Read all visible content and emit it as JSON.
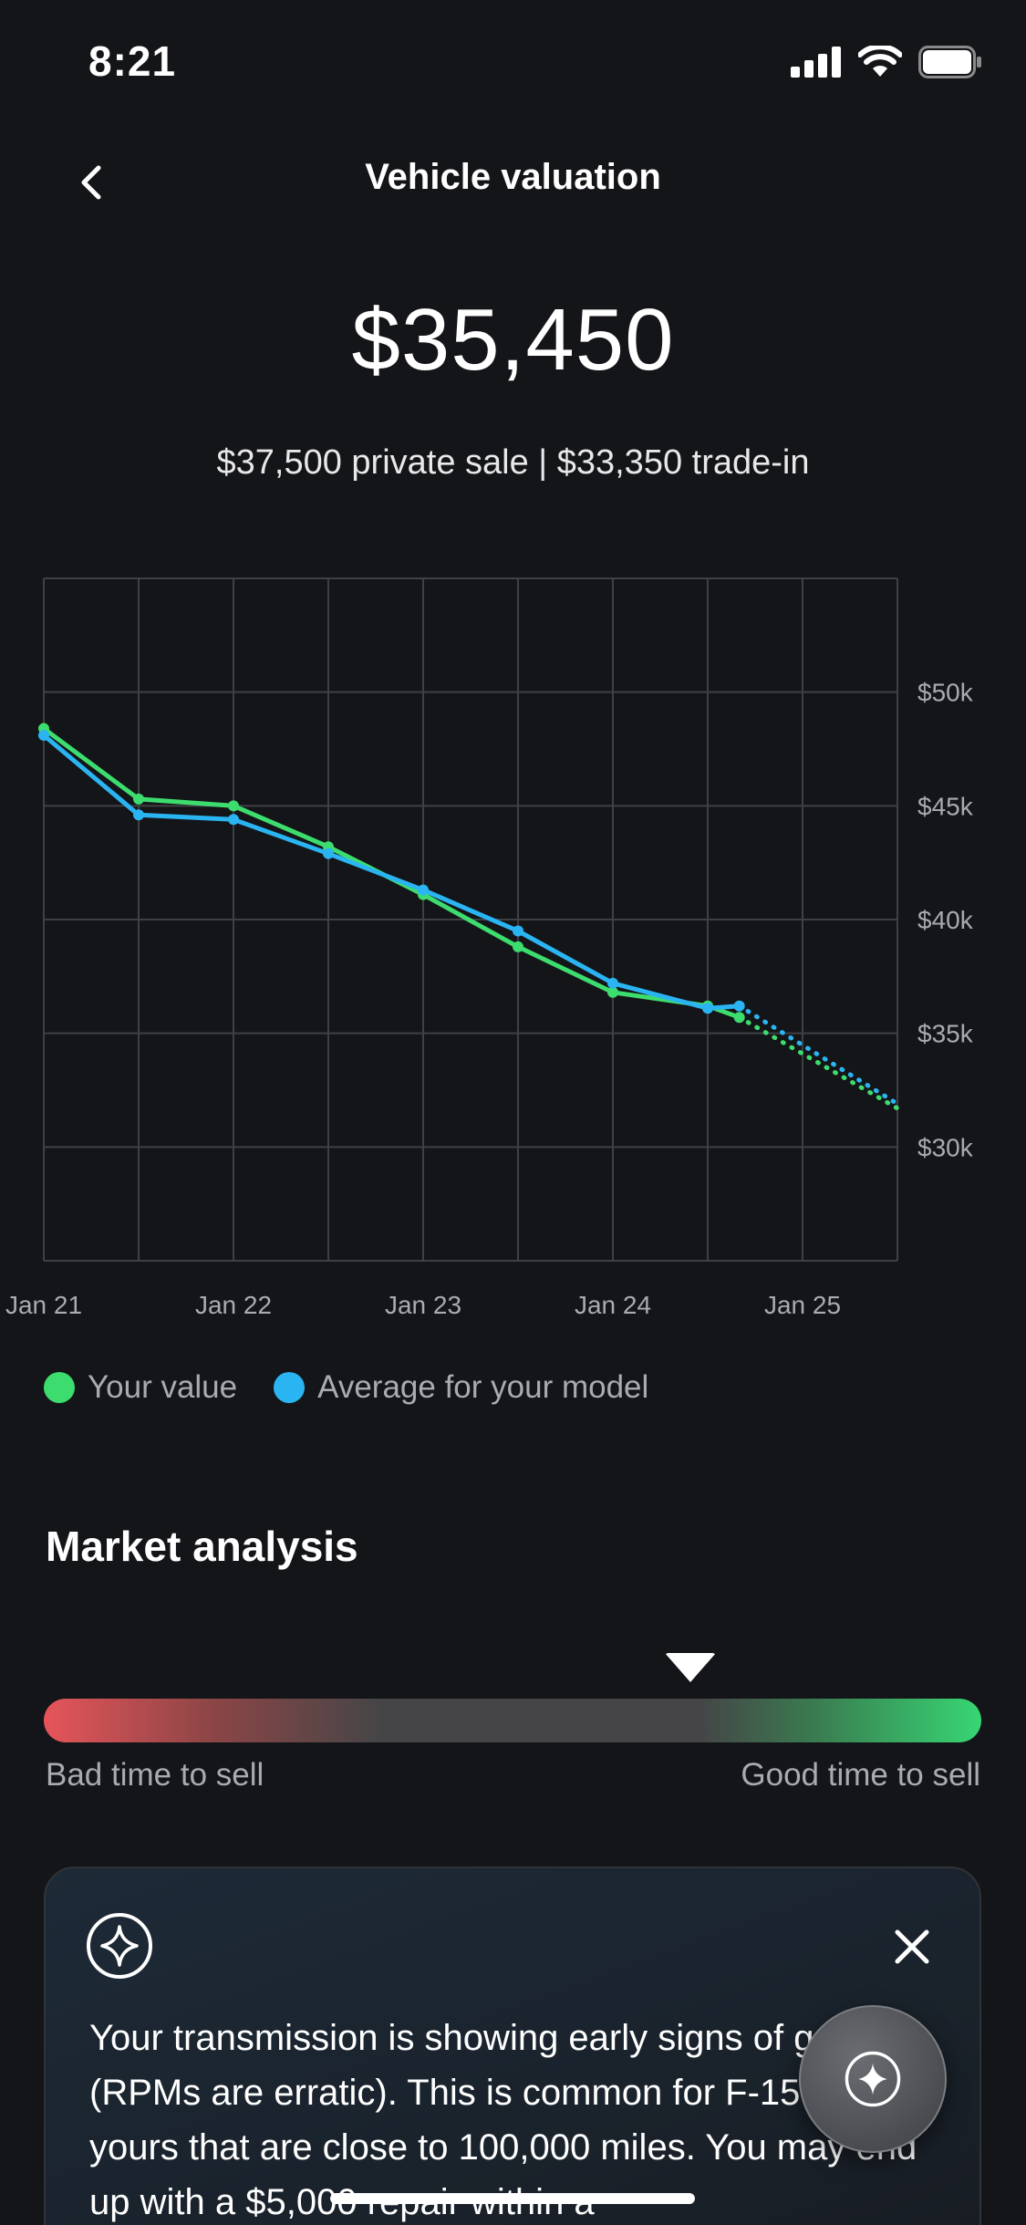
{
  "status_bar": {
    "time": "8:21"
  },
  "header": {
    "title": "Vehicle valuation"
  },
  "valuation": {
    "amount": "$35,450",
    "subtitle": "$37,500 private sale | $33,350 trade-in"
  },
  "chart_data": {
    "type": "line",
    "x_ticks": [
      "Jan 21",
      "Jan 22",
      "Jan 23",
      "Jan 24",
      "Jan 25"
    ],
    "y_ticks": [
      "$50k",
      "$45k",
      "$40k",
      "$35k",
      "$30k"
    ],
    "y_tick_values": [
      50000,
      45000,
      40000,
      35000,
      30000
    ],
    "ylim": [
      25000,
      55000
    ],
    "xlim": [
      "2021-01",
      "2025-07"
    ],
    "grid": true,
    "series": [
      {
        "name": "Your value",
        "color": "#3ddc6e",
        "x": [
          "2021-01",
          "2021-07",
          "2022-01",
          "2022-07",
          "2023-01",
          "2023-07",
          "2024-01",
          "2024-07",
          "2024-09"
        ],
        "values": [
          48400,
          45300,
          45000,
          43200,
          41100,
          38800,
          36800,
          36200,
          35700
        ],
        "forecast_x": [
          "2024-09",
          "2025-07"
        ],
        "forecast_values": [
          35700,
          31700
        ]
      },
      {
        "name": "Average for your model",
        "color": "#2ab4f2",
        "x": [
          "2021-01",
          "2021-07",
          "2022-01",
          "2022-07",
          "2023-01",
          "2023-07",
          "2024-01",
          "2024-07",
          "2024-09"
        ],
        "values": [
          48100,
          44600,
          44400,
          42900,
          41300,
          39500,
          37200,
          36100,
          36200
        ],
        "forecast_x": [
          "2024-09",
          "2025-07"
        ],
        "forecast_values": [
          36200,
          31900
        ]
      }
    ]
  },
  "legend": {
    "items": [
      {
        "label": "Your value",
        "color": "#3ddc6e"
      },
      {
        "label": "Average for your model",
        "color": "#2ab4f2"
      }
    ]
  },
  "market_analysis": {
    "title": "Market analysis",
    "level": 0.69,
    "left_label": "Bad time to sell",
    "right_label": "Good time to sell"
  },
  "insight": {
    "text": "Your transmission is showing early signs of going (RPMs are erratic). This is common for F-150's like yours that are close to 100,000 miles. You may end up with a $5,000 repair within a"
  },
  "icons": {
    "back": "chevron-left-icon",
    "signal": "cellular-signal-icon",
    "wifi": "wifi-icon",
    "battery": "battery-icon",
    "sparkle": "sparkle-icon",
    "close": "close-icon"
  }
}
